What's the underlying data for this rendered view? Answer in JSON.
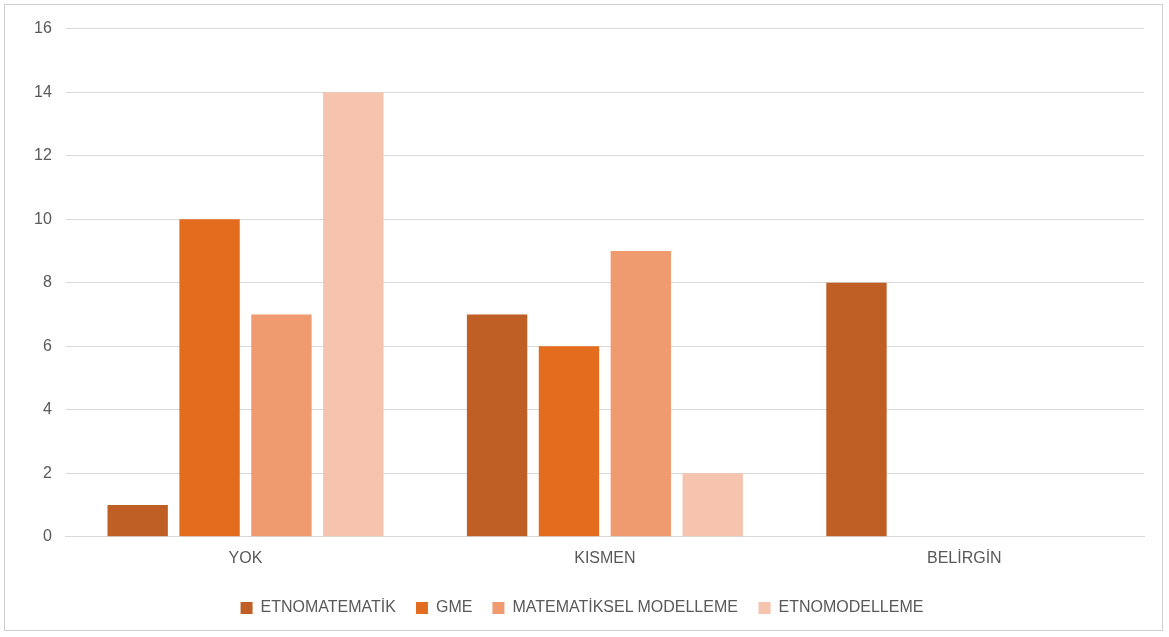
{
  "chart_data": {
    "type": "bar",
    "categories": [
      "YOK",
      "KISMEN",
      "BELİRGİN"
    ],
    "series": [
      {
        "name": "ETNOMATEMATİK",
        "color": "#bf5f26",
        "values": [
          1,
          7,
          8
        ]
      },
      {
        "name": "GME",
        "color": "#e36c1f",
        "values": [
          10,
          6,
          0
        ]
      },
      {
        "name": "MATEMATİKSEL MODELLEME",
        "color": "#f09a70",
        "values": [
          7,
          9,
          0
        ]
      },
      {
        "name": "ETNOMODELLEME",
        "color": "#f5c3ae",
        "values": [
          14,
          2,
          0
        ]
      }
    ],
    "ylim": [
      0,
      16
    ],
    "yticks": [
      0,
      2,
      4,
      6,
      8,
      10,
      12,
      14,
      16
    ],
    "grid": "y",
    "legend": "bottom"
  }
}
